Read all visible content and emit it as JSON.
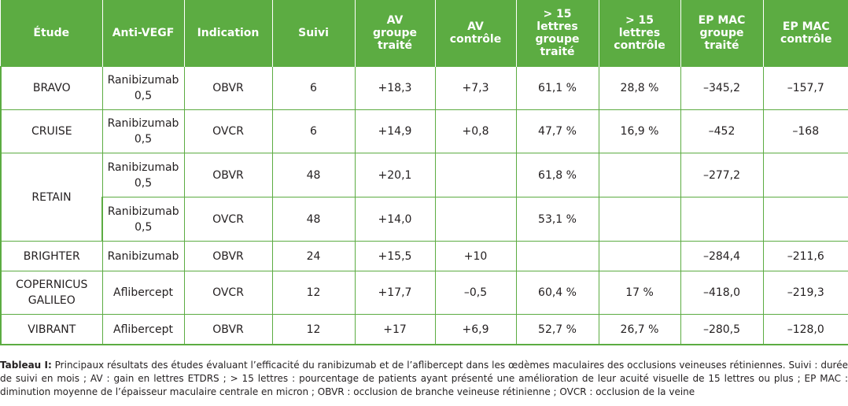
{
  "table": {
    "headers": [
      "Étude",
      "Anti-VEGF",
      "Indication",
      "Suivi",
      "AV\ngroupe\ntraité",
      "AV\ncontrôle",
      "> 15\nlettres\ngroupe\ntraité",
      "> 15\nlettres\ncontrôle",
      "EP MAC\ngroupe\ntraité",
      "EP MAC\ncontrôle"
    ],
    "rows": {
      "bravo": {
        "etude": "BRAVO",
        "anti": "Ranibizumab\n0,5",
        "indication": "OBVR",
        "suivi": "6",
        "av_t": "+18,3",
        "av_c": "+7,3",
        "l15_t": "61,1 %",
        "l15_c": "28,8 %",
        "ep_t": "–345,2",
        "ep_c": "–157,7"
      },
      "cruise": {
        "etude": "CRUISE",
        "anti": "Ranibizumab\n0,5",
        "indication": "OVCR",
        "suivi": "6",
        "av_t": "+14,9",
        "av_c": "+0,8",
        "l15_t": "47,7 %",
        "l15_c": "16,9 %",
        "ep_t": "–452",
        "ep_c": "–168"
      },
      "retain": {
        "etude": "RETAIN",
        "a": {
          "anti": "Ranibizumab\n0,5",
          "indication": "OBVR",
          "suivi": "48",
          "av_t": "+20,1",
          "av_c": "",
          "l15_t": "61,8 %",
          "l15_c": "",
          "ep_t": "–277,2",
          "ep_c": ""
        },
        "b": {
          "anti": "Ranibizumab\n0,5",
          "indication": "OVCR",
          "suivi": "48",
          "av_t": "+14,0",
          "av_c": "",
          "l15_t": "53,1 %",
          "l15_c": "",
          "ep_t": "",
          "ep_c": ""
        }
      },
      "brighter": {
        "etude": "BRIGHTER",
        "anti": "Ranibizumab",
        "indication": "OBVR",
        "suivi": "24",
        "av_t": "+15,5",
        "av_c": "+10",
        "l15_t": "",
        "l15_c": "",
        "ep_t": "–284,4",
        "ep_c": "–211,6"
      },
      "copernicus": {
        "etude": "COPERNICUS\nGALILEO",
        "anti": "Aflibercept",
        "indication": "OVCR",
        "suivi": "12",
        "av_t": "+17,7",
        "av_c": "–0,5",
        "l15_t": "60,4 %",
        "l15_c": "17 %",
        "ep_t": "–418,0",
        "ep_c": "–219,3"
      },
      "vibrant": {
        "etude": "VIBRANT",
        "anti": "Aflibercept",
        "indication": "OBVR",
        "suivi": "12",
        "av_t": "+17",
        "av_c": "+6,9",
        "l15_t": "52,7 %",
        "l15_c": "26,7 %",
        "ep_t": "–280,5",
        "ep_c": "–128,0"
      }
    }
  },
  "caption": {
    "label": "Tableau I:",
    "text": " Principaux résultats des études évaluant l’efficacité du ranibizumab et de l’aflibercept dans les œdèmes maculaires des occlusions veineuses rétiniennes. Suivi : durée de suivi en mois ; AV : gain en lettres ETDRS ; > 15 lettres : pourcentage de patients ayant présenté une amélioration de leur acuité visuelle de 15 lettres ou plus ; EP MAC : diminution moyenne de l’épaisseur maculaire centrale en micron ; OBVR : occlusion de branche veineuse rétinienne ; OVCR : occlusion de la veine"
  },
  "colors": {
    "header_bg": "#5cac42",
    "border": "#5cac42",
    "text": "#231f20"
  }
}
